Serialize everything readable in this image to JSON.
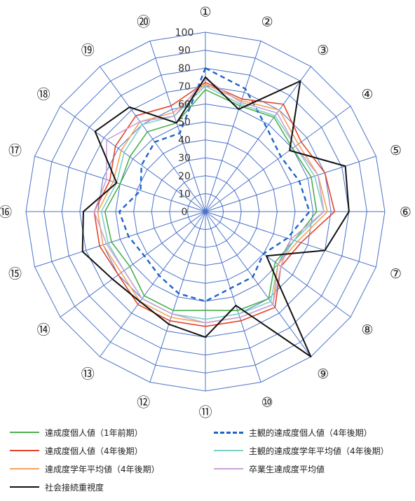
{
  "chart_data": {
    "type": "radar",
    "axes": [
      "①",
      "②",
      "③",
      "④",
      "⑤",
      "⑥",
      "⑦",
      "⑧",
      "⑨",
      "⑩",
      "⑪",
      "⑫",
      "⑬",
      "⑭",
      "⑮",
      "⑯",
      "⑰",
      "⑱",
      "⑲",
      "⑳"
    ],
    "rticks": [
      "0",
      "10",
      "20",
      "30",
      "40",
      "50",
      "60",
      "70",
      "80",
      "90",
      "100"
    ],
    "rlim": [
      0,
      100
    ],
    "grid": true,
    "legend_position": "bottom",
    "series": [
      {
        "name": "達成度個人値（1年前期）",
        "color": "#4caf50",
        "style": "solid",
        "values": [
          68,
          62,
          65,
          60,
          62,
          62,
          52,
          48,
          60,
          58,
          55,
          58,
          58,
          52,
          55,
          56,
          50,
          52,
          55,
          52
        ]
      },
      {
        "name": "主観的達成度個人値（4年後期）",
        "color": "#1e63c6",
        "style": "dashed",
        "values": [
          80,
          72,
          58,
          52,
          55,
          58,
          48,
          40,
          45,
          45,
          50,
          48,
          44,
          42,
          45,
          48,
          38,
          44,
          48,
          46
        ]
      },
      {
        "name": "達成度個人値（4年後期）",
        "color": "#e2462b",
        "style": "solid",
        "values": [
          72,
          66,
          74,
          66,
          70,
          72,
          56,
          52,
          66,
          64,
          64,
          64,
          64,
          60,
          62,
          62,
          56,
          62,
          66,
          62
        ]
      },
      {
        "name": "主観的達成度学年平均値（4年後期）",
        "color": "#7fd0c8",
        "style": "solid",
        "values": [
          70,
          63,
          66,
          62,
          64,
          66,
          52,
          50,
          62,
          60,
          60,
          60,
          60,
          56,
          57,
          58,
          52,
          56,
          60,
          56
        ]
      },
      {
        "name": "達成度学年平均値（4年後期）",
        "color": "#f5a35c",
        "style": "solid",
        "values": [
          71,
          65,
          70,
          64,
          66,
          68,
          54,
          50,
          64,
          62,
          62,
          62,
          62,
          58,
          60,
          60,
          54,
          58,
          62,
          58
        ]
      },
      {
        "name": "卒業生達成度平均値",
        "color": "#c9a3d6",
        "style": "solid",
        "values": [
          74,
          64,
          68,
          62,
          66,
          66,
          50,
          52,
          64,
          62,
          62,
          60,
          60,
          56,
          58,
          62,
          58,
          68,
          62,
          56
        ]
      },
      {
        "name": "社会接続重視度",
        "color": "#111111",
        "style": "solid",
        "values": [
          75,
          60,
          90,
          58,
          82,
          80,
          70,
          42,
          100,
          55,
          70,
          66,
          62,
          64,
          72,
          68,
          52,
          76,
          72,
          52
        ]
      }
    ]
  }
}
